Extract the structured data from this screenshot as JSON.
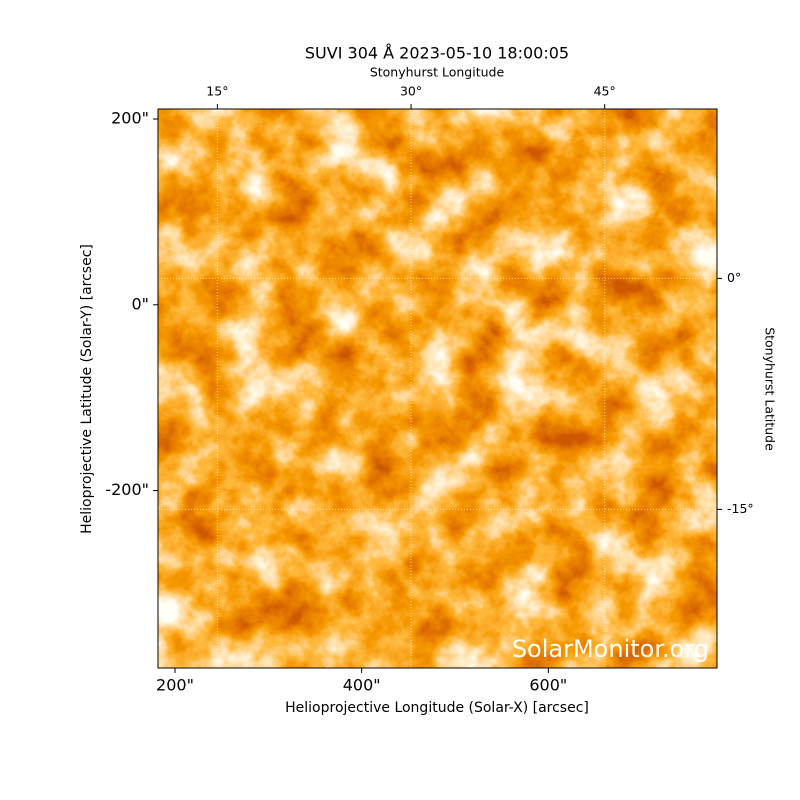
{
  "chart_data": {
    "type": "image",
    "title": "SUVI 304 Å 2023-05-10 18:00:05",
    "xlabel": "Helioprojective Longitude (Solar-X) [arcsec]",
    "ylabel": "Helioprojective Latitude (Solar-Y) [arcsec]",
    "x2label": "Stonyhurst Longitude",
    "y2label": "Stonyhurst Latitude",
    "watermark": "SolarMonitor.org",
    "xlim": [
      181.8,
      780.7
    ],
    "ylim": [
      -391,
      210.8
    ],
    "xticks": [
      {
        "value": 200,
        "label": "200\""
      },
      {
        "value": 400,
        "label": "400\""
      },
      {
        "value": 600,
        "label": "600\""
      }
    ],
    "yticks": [
      {
        "value": 200,
        "label": "200\""
      },
      {
        "value": 0,
        "label": "0\""
      },
      {
        "value": -200,
        "label": "-200\""
      }
    ],
    "x2lim": [
      10.4,
      53.7
    ],
    "x2ticks": [
      {
        "value": 15,
        "label": "15°"
      },
      {
        "value": 30,
        "label": "30°"
      },
      {
        "value": 45,
        "label": "45°"
      }
    ],
    "y2lim": [
      -25.3,
      11.0
    ],
    "y2ticks": [
      {
        "value": 0,
        "label": "0°"
      },
      {
        "value": -15,
        "label": "-15°"
      }
    ],
    "grid": true
  }
}
